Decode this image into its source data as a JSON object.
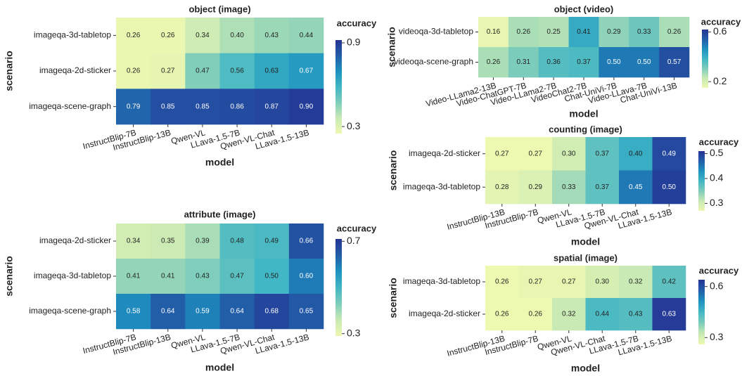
{
  "chart_data": [
    {
      "type": "heatmap",
      "title": "object (image)",
      "x_label": "model",
      "y_label": "scenario",
      "colorbar_label": "accuracy",
      "categories": [
        "InstructBlip-7B",
        "InstructBlip-13B",
        "Qwen-VL",
        "LLava-1.5-7B",
        "Qwen-VL-Chat",
        "LLava-1.5-13B"
      ],
      "rows": [
        "imageqa-3d-tabletop",
        "imageqa-2d-sticker",
        "imageqa-scene-graph"
      ],
      "values": [
        [
          0.26,
          0.26,
          0.34,
          0.4,
          0.43,
          0.44
        ],
        [
          0.26,
          0.27,
          0.47,
          0.56,
          0.63,
          0.67
        ],
        [
          0.79,
          0.85,
          0.85,
          0.86,
          0.87,
          0.9
        ]
      ],
      "value_labels": [
        [
          "0.26",
          "0.26",
          "0.34",
          "0.40",
          "0.43",
          "0.44"
        ],
        [
          "0.26",
          "0.27",
          "0.47",
          "0.56",
          "0.63",
          "0.67"
        ],
        [
          "0.79",
          "0.85",
          "0.85",
          "0.86",
          "0.87",
          "0.90"
        ]
      ],
      "clim": [
        0.25,
        0.92
      ],
      "cticks": [
        0.3,
        0.9
      ]
    },
    {
      "type": "heatmap",
      "title": "object (video)",
      "x_label": "model",
      "y_label": "scenario",
      "colorbar_label": "accuracy",
      "categories": [
        "Video-LLama2-13B",
        "Video-ChatGPT-7B",
        "Video-LLama2-7B",
        "VideoChat2-7B",
        "Chat-UniVi-7B",
        "Video-LLava-7B",
        "Chat-UniVi-13B"
      ],
      "rows": [
        "videoqa-3d-tabletop",
        "videoqa-scene-graph"
      ],
      "values": [
        [
          0.16,
          0.26,
          0.25,
          0.41,
          0.29,
          0.33,
          0.26
        ],
        [
          0.26,
          0.31,
          0.36,
          0.37,
          0.5,
          0.5,
          0.57
        ]
      ],
      "value_labels": [
        [
          "0.16",
          "0.26",
          "0.25",
          "0.41",
          "0.29",
          "0.33",
          "0.26"
        ],
        [
          "0.26",
          "0.31",
          "0.36",
          "0.37",
          "0.50",
          "0.50",
          "0.57"
        ]
      ],
      "clim": [
        0.15,
        0.62
      ],
      "cticks": [
        0.2,
        0.6
      ]
    },
    {
      "type": "heatmap",
      "title": "counting (image)",
      "x_label": "model",
      "y_label": "scenario",
      "colorbar_label": "accuracy",
      "categories": [
        "InstructBlip-13B",
        "InstructBlip-7B",
        "Qwen-VL",
        "LLava-1.5-7B",
        "Qwen-VL-Chat",
        "LLava-1.5-13B"
      ],
      "rows": [
        "imageqa-2d-sticker",
        "imageqa-3d-tabletop"
      ],
      "values": [
        [
          0.27,
          0.27,
          0.3,
          0.37,
          0.4,
          0.49
        ],
        [
          0.28,
          0.29,
          0.33,
          0.37,
          0.45,
          0.5
        ]
      ],
      "value_labels": [
        [
          "0.27",
          "0.27",
          "0.30",
          "0.37",
          "0.40",
          "0.49"
        ],
        [
          "0.28",
          "0.29",
          "0.33",
          "0.37",
          "0.45",
          "0.50"
        ]
      ],
      "clim": [
        0.27,
        0.51
      ],
      "cticks": [
        0.3,
        0.4,
        0.5
      ]
    },
    {
      "type": "heatmap",
      "title": "attribute (image)",
      "x_label": "model",
      "y_label": "scenario",
      "colorbar_label": "accuracy",
      "categories": [
        "InstructBlip-7B",
        "InstructBlip-13B",
        "Qwen-VL",
        "LLava-1.5-7B",
        "Qwen-VL-Chat",
        "LLava-1.5-13B"
      ],
      "rows": [
        "imageqa-2d-sticker",
        "imageqa-3d-tabletop",
        "imageqa-scene-graph"
      ],
      "values": [
        [
          0.34,
          0.35,
          0.39,
          0.48,
          0.49,
          0.66
        ],
        [
          0.41,
          0.41,
          0.43,
          0.47,
          0.5,
          0.6
        ],
        [
          0.58,
          0.64,
          0.59,
          0.64,
          0.68,
          0.65
        ]
      ],
      "value_labels": [
        [
          "0.34",
          "0.35",
          "0.39",
          "0.48",
          "0.49",
          "0.66"
        ],
        [
          "0.41",
          "0.41",
          "0.43",
          "0.47",
          "0.50",
          "0.60"
        ],
        [
          "0.58",
          "0.64",
          "0.59",
          "0.64",
          "0.68",
          "0.65"
        ]
      ],
      "clim": [
        0.29,
        0.71
      ],
      "cticks": [
        0.3,
        0.7
      ]
    },
    {
      "type": "heatmap",
      "title": "spatial (image)",
      "x_label": "model",
      "y_label": "scenario",
      "colorbar_label": "accuracy",
      "categories": [
        "InstructBlip-13B",
        "InstructBlip-7B",
        "Qwen-VL",
        "Qwen-VL-Chat",
        "LLava-1.5-7B",
        "LLava-1.5-13B"
      ],
      "rows": [
        "imageqa-3d-tabletop",
        "imageqa-2d-sticker"
      ],
      "values": [
        [
          0.26,
          0.27,
          0.27,
          0.3,
          0.32,
          0.42
        ],
        [
          0.26,
          0.26,
          0.32,
          0.44,
          0.43,
          0.63
        ]
      ],
      "value_labels": [
        [
          "0.26",
          "0.27",
          "0.27",
          "0.30",
          "0.32",
          "0.42"
        ],
        [
          "0.26",
          "0.26",
          "0.32",
          "0.44",
          "0.43",
          "0.63"
        ]
      ],
      "clim": [
        0.26,
        0.64
      ],
      "cticks": [
        0.3,
        0.6
      ]
    }
  ]
}
